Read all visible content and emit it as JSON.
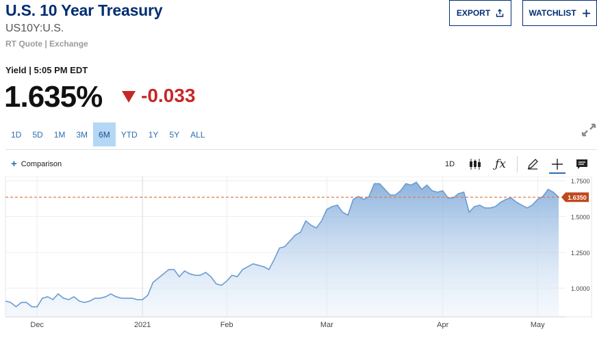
{
  "header": {
    "title": "U.S. 10 Year Treasury",
    "symbol": "US10Y:U.S.",
    "quote_source": "RT Quote | Exchange"
  },
  "buttons": {
    "export": "EXPORT",
    "watchlist": "WATCHLIST"
  },
  "quote": {
    "yield_label": "Yield | 5:05 PM EDT",
    "price": "1.635%",
    "change": "-0.033",
    "change_color": "#c62828"
  },
  "ranges": [
    "1D",
    "5D",
    "1M",
    "3M",
    "6M",
    "YTD",
    "1Y",
    "5Y",
    "ALL"
  ],
  "active_range": "6M",
  "chart_toolbar": {
    "comparison": "Comparison",
    "interval": "1D",
    "icons": [
      "candlestick-icon",
      "function-icon",
      "pencil-icon",
      "crosshair-icon",
      "comment-icon"
    ]
  },
  "chart_data": {
    "type": "area",
    "series": [
      {
        "values": [
          0.91,
          0.9,
          0.87,
          0.9,
          0.9,
          0.87,
          0.87,
          0.93,
          0.94,
          0.92,
          0.96,
          0.93,
          0.92,
          0.94,
          0.91,
          0.9,
          0.91,
          0.93,
          0.93,
          0.94,
          0.96,
          0.94,
          0.93,
          0.93,
          0.93,
          0.92,
          0.92,
          0.95,
          1.04,
          1.07,
          1.1,
          1.13,
          1.13,
          1.08,
          1.12,
          1.1,
          1.09,
          1.09,
          1.11,
          1.08,
          1.03,
          1.02,
          1.05,
          1.09,
          1.08,
          1.13,
          1.15,
          1.17,
          1.16,
          1.15,
          1.13,
          1.2,
          1.28,
          1.29,
          1.33,
          1.37,
          1.39,
          1.47,
          1.44,
          1.42,
          1.47,
          1.55,
          1.57,
          1.58,
          1.53,
          1.51,
          1.62,
          1.64,
          1.62,
          1.64,
          1.73,
          1.73,
          1.69,
          1.65,
          1.65,
          1.68,
          1.73,
          1.72,
          1.74,
          1.69,
          1.72,
          1.68,
          1.67,
          1.68,
          1.63,
          1.63,
          1.66,
          1.67,
          1.53,
          1.57,
          1.58,
          1.56,
          1.56,
          1.57,
          1.6,
          1.62,
          1.63,
          1.6,
          1.58,
          1.56,
          1.58,
          1.62,
          1.64,
          1.69,
          1.67,
          1.635
        ]
      }
    ],
    "x_ticks": [
      "Dec",
      "2021",
      "Feb",
      "Mar",
      "Apr",
      "May"
    ],
    "x_tick_positions": [
      6,
      26,
      42,
      61,
      83,
      101
    ],
    "y_ticks": [
      "1.7500",
      "1.5000",
      "1.2500",
      "1.0000"
    ],
    "y_tick_values": [
      1.75,
      1.5,
      1.25,
      1.0
    ],
    "ylim": [
      0.8,
      1.77
    ],
    "current_value": 1.635,
    "current_label": "1.6350",
    "line_color": "#6b9bd1",
    "reference_line_color": "#e07b4f",
    "label_color": "#c0481e",
    "grid": true
  }
}
